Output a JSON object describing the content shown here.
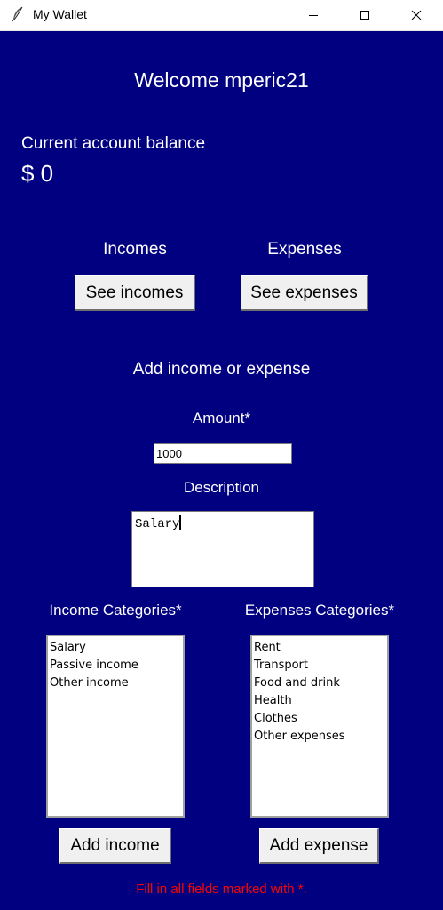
{
  "window": {
    "title": "My Wallet",
    "icon": "feather-icon"
  },
  "welcome": "Welcome mperic21",
  "balance": {
    "label": "Current account balance",
    "value": "$ 0"
  },
  "incomes": {
    "heading": "Incomes",
    "button": "See incomes"
  },
  "expenses": {
    "heading": "Expenses",
    "button": "See expenses"
  },
  "form": {
    "heading": "Add income or expense",
    "amount_label": "Amount*",
    "amount_value": "1000",
    "description_label": "Description",
    "description_value": "Salary"
  },
  "income_categories": {
    "label": "Income Categories*",
    "items": [
      "Salary",
      "Passive income",
      "Other income"
    ]
  },
  "expense_categories": {
    "label": "Expenses Categories*",
    "items": [
      "Rent",
      "Transport",
      "Food and drink",
      "Health",
      "Clothes",
      "Other expenses"
    ]
  },
  "actions": {
    "add_income": "Add income",
    "add_expense": "Add expense"
  },
  "message": "Fill in all fields marked with *.",
  "colors": {
    "background": "#000080",
    "text": "#ffffff",
    "error": "#ff0000",
    "button": "#f0f0f0"
  }
}
